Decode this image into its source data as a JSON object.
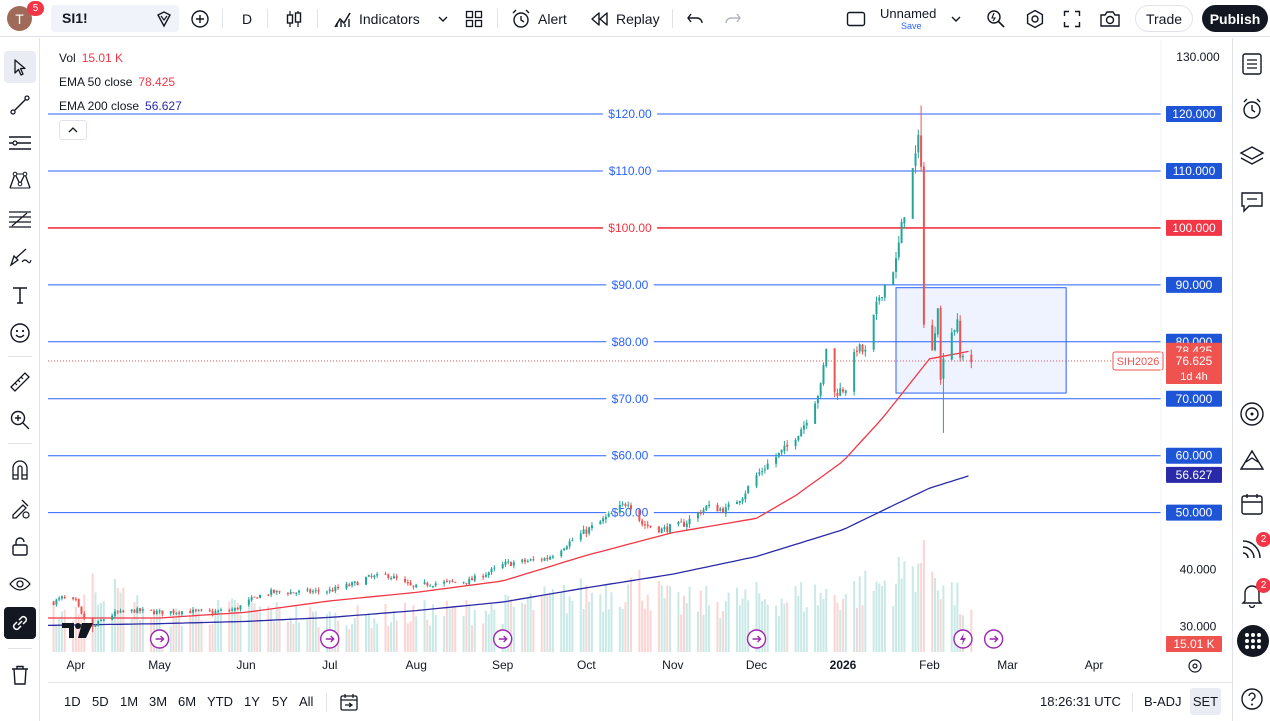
{
  "header": {
    "avatar_letter": "T",
    "notification_count": "5",
    "symbol": "SI1!",
    "interval": "D",
    "indicators_label": "Indicators",
    "alert_label": "Alert",
    "replay_label": "Replay",
    "layout_name": "Unnamed",
    "layout_save": "Save",
    "trade_label": "Trade",
    "publish_label": "Publish"
  },
  "legend": {
    "vol_label": "Vol",
    "vol_value": "15.01 K",
    "ema50_label": "EMA 50 close",
    "ema50_value": "78.425",
    "ema200_label": "EMA 200 close",
    "ema200_value": "56.627"
  },
  "right_toolbar": {
    "news_badge": "2",
    "alerts_badge": "2"
  },
  "chart_data": {
    "type": "candlestick",
    "symbol": "SI1!",
    "contract": "SIH2026",
    "countdown": "1d 4h",
    "ylim": [
      25,
      133
    ],
    "y_ticks": [
      "130.000",
      "40.000",
      "30.000"
    ],
    "x_tick_labels": [
      "Apr",
      "May",
      "Jun",
      "Jul",
      "Aug",
      "Sep",
      "Oct",
      "Nov",
      "Dec",
      "2026",
      "Feb",
      "Mar",
      "Apr"
    ],
    "x_ticks": [
      "2025-04-01",
      "2025-05-01",
      "2025-06-01",
      "2025-07-01",
      "2025-08-01",
      "2025-09-01",
      "2025-10-01",
      "2025-11-01",
      "2025-12-01",
      "2026-01-01",
      "2026-02-01",
      "2026-03-01",
      "2026-04-01"
    ],
    "x_range": [
      "2025-03-22",
      "2026-04-25"
    ],
    "horizontal_lines": [
      {
        "price": 120,
        "label": "$120.00",
        "axis_label": "120.000",
        "color": "#2962ff"
      },
      {
        "price": 110,
        "label": "$110.00",
        "axis_label": "110.000",
        "color": "#2962ff"
      },
      {
        "price": 100,
        "label": "$100.00",
        "axis_label": "100.000",
        "color": "#f23645"
      },
      {
        "price": 90,
        "label": "$90.00",
        "axis_label": "90.000",
        "color": "#2962ff"
      },
      {
        "price": 80,
        "label": "$80.00",
        "axis_label": "80.000",
        "color": "#2962ff"
      },
      {
        "price": 70,
        "label": "$70.00",
        "axis_label": "70.000",
        "color": "#2962ff"
      },
      {
        "price": 60,
        "label": "$60.00",
        "axis_label": "60.000",
        "color": "#2962ff"
      },
      {
        "price": 50,
        "label": "$50.00",
        "axis_label": "50.000",
        "color": "#2962ff"
      }
    ],
    "price_labels": {
      "ema50": "78.425",
      "last": "76.625",
      "ema200": "56.627",
      "volume": "15.01 K"
    },
    "last_price": 76.625,
    "ema50_last": 78.425,
    "ema200_last": 56.627,
    "rectangle": {
      "x0": "2026-01-20",
      "x1": "2026-03-22",
      "y0": 71,
      "y1": 89.5
    },
    "price_path": [
      [
        "2025-03-22",
        33.8
      ],
      [
        "2025-03-27",
        35.0
      ],
      [
        "2025-04-01",
        34.3
      ],
      [
        "2025-04-03",
        32.0
      ],
      [
        "2025-04-07",
        29.8
      ],
      [
        "2025-04-10",
        31.0
      ],
      [
        "2025-04-15",
        32.3
      ],
      [
        "2025-04-22",
        32.8
      ],
      [
        "2025-05-01",
        32.5
      ],
      [
        "2025-05-10",
        32.7
      ],
      [
        "2025-05-20",
        32.5
      ],
      [
        "2025-05-28",
        33.0
      ],
      [
        "2025-06-05",
        35.3
      ],
      [
        "2025-06-10",
        36.0
      ],
      [
        "2025-06-20",
        36.0
      ],
      [
        "2025-07-01",
        36.3
      ],
      [
        "2025-07-10",
        37.5
      ],
      [
        "2025-07-14",
        38.5
      ],
      [
        "2025-07-22",
        39.0
      ],
      [
        "2025-07-31",
        36.8
      ],
      [
        "2025-08-05",
        37.5
      ],
      [
        "2025-08-20",
        38.0
      ],
      [
        "2025-08-29",
        40.0
      ],
      [
        "2025-09-02",
        41.0
      ],
      [
        "2025-09-10",
        41.5
      ],
      [
        "2025-09-17",
        42.0
      ],
      [
        "2025-09-24",
        44.5
      ],
      [
        "2025-09-30",
        46.5
      ],
      [
        "2025-10-08",
        49.0
      ],
      [
        "2025-10-16",
        52.0
      ],
      [
        "2025-10-21",
        48.0
      ],
      [
        "2025-10-28",
        47.0
      ],
      [
        "2025-11-05",
        48.0
      ],
      [
        "2025-11-13",
        51.0
      ],
      [
        "2025-11-20",
        50.5
      ],
      [
        "2025-11-26",
        53.0
      ],
      [
        "2025-12-01",
        56.5
      ],
      [
        "2025-12-05",
        58.5
      ],
      [
        "2025-12-12",
        61.5
      ],
      [
        "2025-12-18",
        65.5
      ],
      [
        "2025-12-24",
        72.0
      ],
      [
        "2025-12-26",
        79.0
      ],
      [
        "2025-12-29",
        71.0
      ],
      [
        "2026-01-02",
        72.0
      ],
      [
        "2026-01-06",
        79.0
      ],
      [
        "2026-01-09",
        78.0
      ],
      [
        "2026-01-14",
        88.0
      ],
      [
        "2026-01-20",
        94.0
      ],
      [
        "2026-01-23",
        103.0
      ],
      [
        "2026-01-26",
        110.0
      ],
      [
        "2026-01-28",
        115.0
      ],
      [
        "2026-01-29",
        112.0
      ],
      [
        "2026-01-30",
        83.0
      ],
      [
        "2026-02-02",
        78.0
      ],
      [
        "2026-02-04",
        87.0
      ],
      [
        "2026-02-05",
        73.0
      ],
      [
        "2026-02-06",
        78.0
      ],
      [
        "2026-02-09",
        82.0
      ],
      [
        "2026-02-11",
        83.0
      ],
      [
        "2026-02-12",
        77.0
      ],
      [
        "2026-02-13",
        78.0
      ],
      [
        "2026-02-16",
        76.6
      ]
    ],
    "ema50_path": [
      [
        "2025-03-22",
        31.5
      ],
      [
        "2025-05-01",
        31.5
      ],
      [
        "2025-06-01",
        32.5
      ],
      [
        "2025-07-01",
        34.5
      ],
      [
        "2025-08-01",
        36.0
      ],
      [
        "2025-09-01",
        38.0
      ],
      [
        "2025-10-01",
        42.5
      ],
      [
        "2025-11-01",
        46.5
      ],
      [
        "2025-12-01",
        49.0
      ],
      [
        "2025-12-15",
        53.0
      ],
      [
        "2026-01-01",
        59.0
      ],
      [
        "2026-01-15",
        66.5
      ],
      [
        "2026-02-01",
        77.0
      ],
      [
        "2026-02-16",
        78.4
      ]
    ],
    "ema200_path": [
      [
        "2025-03-22",
        30.2
      ],
      [
        "2025-05-01",
        30.5
      ],
      [
        "2025-06-01",
        30.9
      ],
      [
        "2025-07-01",
        31.6
      ],
      [
        "2025-08-01",
        32.8
      ],
      [
        "2025-09-01",
        34.3
      ],
      [
        "2025-10-01",
        36.8
      ],
      [
        "2025-11-01",
        39.2
      ],
      [
        "2025-12-01",
        42.3
      ],
      [
        "2026-01-01",
        47.0
      ],
      [
        "2026-01-20",
        51.5
      ],
      [
        "2026-02-01",
        54.3
      ],
      [
        "2026-02-16",
        56.6
      ]
    ],
    "volume_path": [
      [
        "2025-03-22",
        0.4
      ],
      [
        "2025-04-01",
        0.45
      ],
      [
        "2025-04-08",
        0.7
      ],
      [
        "2025-05-01",
        0.35
      ],
      [
        "2025-06-01",
        0.45
      ],
      [
        "2025-07-01",
        0.35
      ],
      [
        "2025-08-01",
        0.4
      ],
      [
        "2025-09-01",
        0.45
      ],
      [
        "2025-10-01",
        0.6
      ],
      [
        "2025-10-20",
        0.7
      ],
      [
        "2025-11-01",
        0.5
      ],
      [
        "2025-12-01",
        0.55
      ],
      [
        "2026-01-01",
        0.6
      ],
      [
        "2026-01-20",
        0.75
      ],
      [
        "2026-01-30",
        1.0
      ],
      [
        "2026-02-16",
        0.35
      ]
    ],
    "event_markers": [
      {
        "date": "2025-05-01",
        "type": "dividend"
      },
      {
        "date": "2025-07-01",
        "type": "dividend"
      },
      {
        "date": "2025-09-01",
        "type": "dividend"
      },
      {
        "date": "2025-12-01",
        "type": "dividend"
      },
      {
        "date": "2026-02-13",
        "type": "earnings"
      },
      {
        "date": "2026-02-24",
        "type": "dividend"
      }
    ]
  },
  "bottom_bar": {
    "ranges": [
      "1D",
      "5D",
      "1M",
      "3M",
      "6M",
      "YTD",
      "1Y",
      "5Y",
      "All"
    ],
    "time": "18:26:31 UTC",
    "adjustment": "B-ADJ",
    "session": "SET"
  },
  "colors": {
    "up": "#26a69a",
    "down": "#ef5350",
    "ema50": "#f23645",
    "ema200": "#2a2aa8",
    "line_blue": "#2962ff",
    "line_red": "#f23645",
    "rect_fill": "rgba(41,98,255,0.08)"
  }
}
